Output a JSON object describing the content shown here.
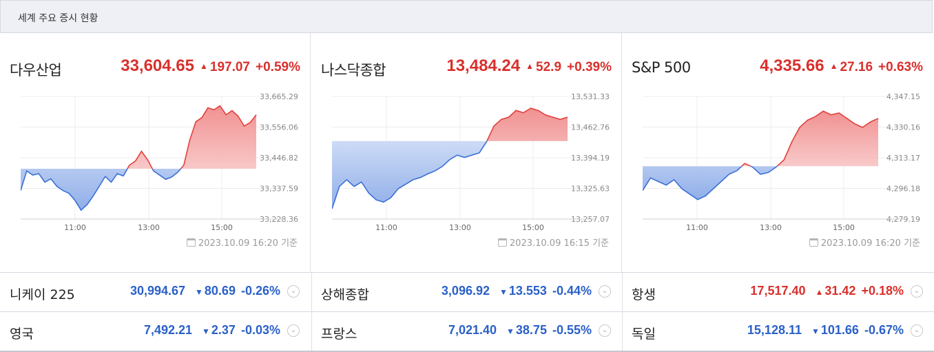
{
  "header": {
    "title": "세계 주요 증시 현황"
  },
  "colors": {
    "up": "#d9302c",
    "down": "#2a60c8"
  },
  "icons": {
    "up": "triangle-up-icon",
    "down": "triangle-down-icon",
    "date": "calendar-clock-icon",
    "expand": "chevron-down-icon"
  },
  "panels": [
    {
      "name": "다우산업",
      "price": "33,604.65",
      "change": "197.07",
      "pct": "+0.59%",
      "direction": "up",
      "timestamp": "2023.10.09 16:20 기준"
    },
    {
      "name": "나스닥종합",
      "price": "13,484.24",
      "change": "52.9",
      "pct": "+0.39%",
      "direction": "up",
      "timestamp": "2023.10.09 16:15 기준"
    },
    {
      "name": "S&P 500",
      "price": "4,335.66",
      "change": "27.16",
      "pct": "+0.63%",
      "direction": "up",
      "timestamp": "2023.10.09 16:20 기준"
    }
  ],
  "chart_data": [
    {
      "type": "line",
      "title": "다우산업",
      "x_ticks": [
        "11:00",
        "13:00",
        "15:00"
      ],
      "y_ticks": [
        "33,665.29",
        "33,556.06",
        "33,446.82",
        "33,337.59",
        "33,228.36"
      ],
      "ylim": [
        33228.36,
        33665.29
      ],
      "baseline": 33407.58,
      "series": [
        {
          "values": [
            33330,
            33400,
            33385,
            33390,
            33360,
            33372,
            33345,
            33330,
            33320,
            33295,
            33260,
            33280,
            33310,
            33345,
            33380,
            33360,
            33390,
            33382,
            33420,
            33435,
            33470,
            33440,
            33400,
            33385,
            33370,
            33378,
            33395,
            33420,
            33510,
            33575,
            33590,
            33625,
            33618,
            33632,
            33600,
            33615,
            33595,
            33560,
            33572,
            33600
          ]
        }
      ],
      "grid": true
    },
    {
      "type": "line",
      "title": "나스닥종합",
      "x_ticks": [
        "11:00",
        "13:00",
        "15:00"
      ],
      "y_ticks": [
        "13,531.33",
        "13,462.76",
        "13,394.19",
        "13,325.63",
        "13,257.07"
      ],
      "ylim": [
        13257.07,
        13531.33
      ],
      "baseline": 13431.34,
      "series": [
        {
          "values": [
            13280,
            13330,
            13345,
            13330,
            13340,
            13315,
            13300,
            13295,
            13305,
            13325,
            13335,
            13345,
            13350,
            13358,
            13365,
            13375,
            13390,
            13400,
            13395,
            13400,
            13405,
            13430,
            13465,
            13480,
            13485,
            13500,
            13495,
            13505,
            13500,
            13490,
            13485,
            13480,
            13485
          ]
        }
      ],
      "grid": true
    },
    {
      "type": "line",
      "title": "S&P 500",
      "x_ticks": [
        "11:00",
        "13:00",
        "15:00"
      ],
      "y_ticks": [
        "4,347.15",
        "4,330.16",
        "4,313.17",
        "4,296.18",
        "4,279.19"
      ],
      "ylim": [
        4279.19,
        4347.15
      ],
      "baseline": 4308.5,
      "series": [
        {
          "values": [
            4295,
            4302,
            4300,
            4298,
            4301,
            4296,
            4293,
            4290,
            4292,
            4296,
            4300,
            4304,
            4306,
            4310,
            4308,
            4304,
            4305,
            4308,
            4312,
            4322,
            4330,
            4334,
            4336,
            4339,
            4337,
            4338,
            4335,
            4332,
            4330,
            4333,
            4335
          ]
        }
      ],
      "grid": true
    }
  ],
  "bottom": [
    [
      {
        "name": "니케이 225",
        "value": "30,994.67",
        "change": "80.69",
        "pct": "-0.26%",
        "direction": "down"
      },
      {
        "name": "상해종합",
        "value": "3,096.92",
        "change": "13.553",
        "pct": "-0.44%",
        "direction": "down"
      },
      {
        "name": "항생",
        "value": "17,517.40",
        "change": "31.42",
        "pct": "+0.18%",
        "direction": "up"
      }
    ],
    [
      {
        "name": "영국",
        "value": "7,492.21",
        "change": "2.37",
        "pct": "-0.03%",
        "direction": "down"
      },
      {
        "name": "프랑스",
        "value": "7,021.40",
        "change": "38.75",
        "pct": "-0.55%",
        "direction": "down"
      },
      {
        "name": "독일",
        "value": "15,128.11",
        "change": "101.66",
        "pct": "-0.67%",
        "direction": "down"
      }
    ]
  ]
}
